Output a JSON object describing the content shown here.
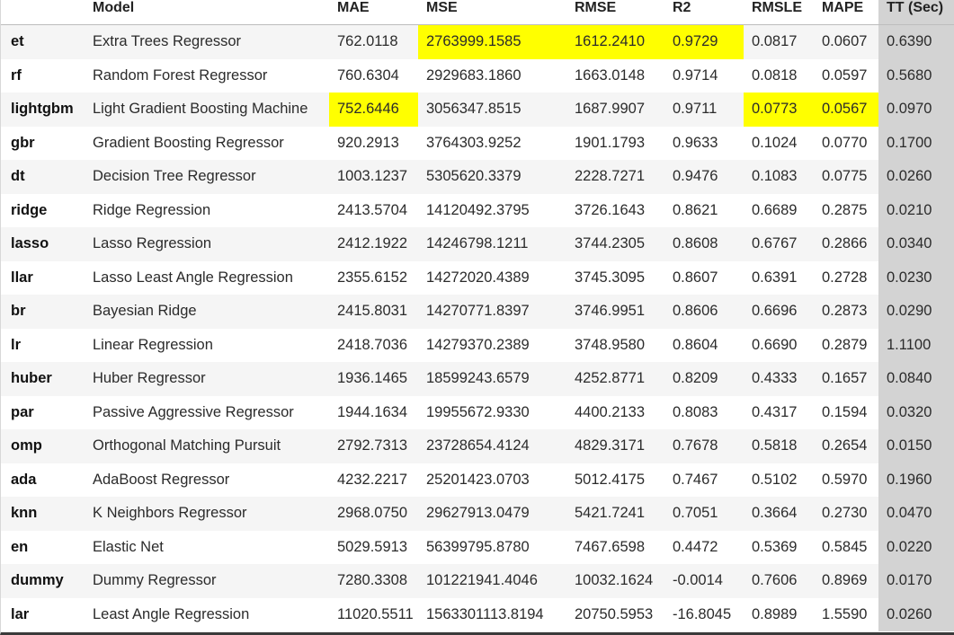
{
  "table": {
    "columns": [
      "",
      "Model",
      "MAE",
      "MSE",
      "RMSE",
      "R2",
      "RMSLE",
      "MAPE",
      "TT (Sec)"
    ],
    "highlight_color": "#ffff00",
    "tt_column_color": "#d3d3d3",
    "rows": [
      {
        "id": "et",
        "cells": [
          "et",
          "Extra Trees Regressor",
          "762.0118",
          "2763999.1585",
          "1612.2410",
          "0.9729",
          "0.0817",
          "0.0607",
          "0.6390"
        ],
        "highlight": [
          3,
          4,
          5
        ]
      },
      {
        "id": "rf",
        "cells": [
          "rf",
          "Random Forest Regressor",
          "760.6304",
          "2929683.1860",
          "1663.0148",
          "0.9714",
          "0.0818",
          "0.0597",
          "0.5680"
        ],
        "highlight": []
      },
      {
        "id": "lightgbm",
        "cells": [
          "lightgbm",
          "Light Gradient Boosting Machine",
          "752.6446",
          "3056347.8515",
          "1687.9907",
          "0.9711",
          "0.0773",
          "0.0567",
          "0.0970"
        ],
        "highlight": [
          2,
          6,
          7
        ]
      },
      {
        "id": "gbr",
        "cells": [
          "gbr",
          "Gradient Boosting Regressor",
          "920.2913",
          "3764303.9252",
          "1901.1793",
          "0.9633",
          "0.1024",
          "0.0770",
          "0.1700"
        ],
        "highlight": []
      },
      {
        "id": "dt",
        "cells": [
          "dt",
          "Decision Tree Regressor",
          "1003.1237",
          "5305620.3379",
          "2228.7271",
          "0.9476",
          "0.1083",
          "0.0775",
          "0.0260"
        ],
        "highlight": []
      },
      {
        "id": "ridge",
        "cells": [
          "ridge",
          "Ridge Regression",
          "2413.5704",
          "14120492.3795",
          "3726.1643",
          "0.8621",
          "0.6689",
          "0.2875",
          "0.0210"
        ],
        "highlight": []
      },
      {
        "id": "lasso",
        "cells": [
          "lasso",
          "Lasso Regression",
          "2412.1922",
          "14246798.1211",
          "3744.2305",
          "0.8608",
          "0.6767",
          "0.2866",
          "0.0340"
        ],
        "highlight": []
      },
      {
        "id": "llar",
        "cells": [
          "llar",
          "Lasso Least Angle Regression",
          "2355.6152",
          "14272020.4389",
          "3745.3095",
          "0.8607",
          "0.6391",
          "0.2728",
          "0.0230"
        ],
        "highlight": []
      },
      {
        "id": "br",
        "cells": [
          "br",
          "Bayesian Ridge",
          "2415.8031",
          "14270771.8397",
          "3746.9951",
          "0.8606",
          "0.6696",
          "0.2873",
          "0.0290"
        ],
        "highlight": []
      },
      {
        "id": "lr",
        "cells": [
          "lr",
          "Linear Regression",
          "2418.7036",
          "14279370.2389",
          "3748.9580",
          "0.8604",
          "0.6690",
          "0.2879",
          "1.1100"
        ],
        "highlight": []
      },
      {
        "id": "huber",
        "cells": [
          "huber",
          "Huber Regressor",
          "1936.1465",
          "18599243.6579",
          "4252.8771",
          "0.8209",
          "0.4333",
          "0.1657",
          "0.0840"
        ],
        "highlight": []
      },
      {
        "id": "par",
        "cells": [
          "par",
          "Passive Aggressive Regressor",
          "1944.1634",
          "19955672.9330",
          "4400.2133",
          "0.8083",
          "0.4317",
          "0.1594",
          "0.0320"
        ],
        "highlight": []
      },
      {
        "id": "omp",
        "cells": [
          "omp",
          "Orthogonal Matching Pursuit",
          "2792.7313",
          "23728654.4124",
          "4829.3171",
          "0.7678",
          "0.5818",
          "0.2654",
          "0.0150"
        ],
        "highlight": []
      },
      {
        "id": "ada",
        "cells": [
          "ada",
          "AdaBoost Regressor",
          "4232.2217",
          "25201423.0703",
          "5012.4175",
          "0.7467",
          "0.5102",
          "0.5970",
          "0.1960"
        ],
        "highlight": []
      },
      {
        "id": "knn",
        "cells": [
          "knn",
          "K Neighbors Regressor",
          "2968.0750",
          "29627913.0479",
          "5421.7241",
          "0.7051",
          "0.3664",
          "0.2730",
          "0.0470"
        ],
        "highlight": []
      },
      {
        "id": "en",
        "cells": [
          "en",
          "Elastic Net",
          "5029.5913",
          "56399795.8780",
          "7467.6598",
          "0.4472",
          "0.5369",
          "0.5845",
          "0.0220"
        ],
        "highlight": []
      },
      {
        "id": "dummy",
        "cells": [
          "dummy",
          "Dummy Regressor",
          "7280.3308",
          "101221941.4046",
          "10032.1624",
          "-0.0014",
          "0.7606",
          "0.8969",
          "0.0170"
        ],
        "highlight": []
      },
      {
        "id": "lar",
        "cells": [
          "lar",
          "Least Angle Regression",
          "11020.5511",
          "1563301113.8194",
          "20750.5953",
          "-16.8045",
          "0.8989",
          "1.5590",
          "0.0260"
        ],
        "highlight": []
      }
    ]
  }
}
